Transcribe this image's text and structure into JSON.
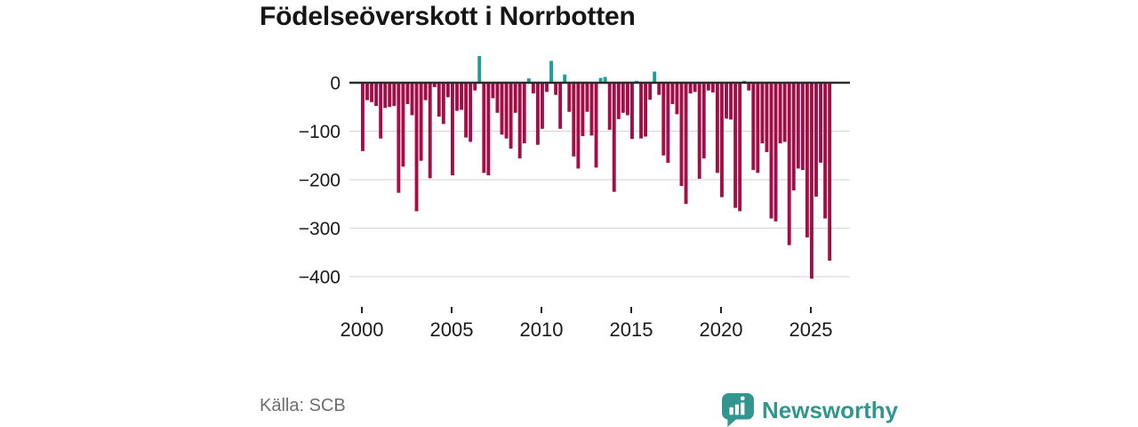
{
  "title": "Födelseöverskott i Norrbotten",
  "source": "Källa: SCB",
  "brand": {
    "name": "Newsworthy",
    "color": "#31968e",
    "icon": "bar-chart-speech-bubble-icon"
  },
  "chart_data": {
    "type": "bar",
    "title": "Födelseöverskott i Norrbotten",
    "frequency": "quarterly",
    "x_start": "2000Q1",
    "x_end": "2026Q1",
    "xticks": [
      2000,
      2005,
      2010,
      2015,
      2020,
      2025
    ],
    "yticks": [
      0,
      -100,
      -200,
      -300,
      -400
    ],
    "ylim": [
      -420,
      60
    ],
    "grid": true,
    "legend": "none",
    "colors": {
      "negative": "#a30e48",
      "positive": "#1d9e96",
      "axis": "#2b2b2b",
      "gridline": "#d9d9d9",
      "tick_text": "#1a1a1a"
    },
    "series": [
      {
        "name": "Födelseöverskott",
        "values": [
          -141,
          -36,
          -40,
          -48,
          -115,
          -52,
          -50,
          -48,
          -227,
          -173,
          -44,
          -67,
          -265,
          -161,
          -36,
          -197,
          -9,
          -70,
          -85,
          -30,
          -191,
          -58,
          -56,
          -113,
          -122,
          -16,
          55,
          -186,
          -191,
          -32,
          -62,
          -107,
          -115,
          -136,
          -62,
          -156,
          -125,
          9,
          -22,
          -128,
          -95,
          -19,
          45,
          -25,
          -95,
          17,
          -60,
          -152,
          -177,
          -110,
          -60,
          -109,
          -175,
          10,
          12,
          -97,
          -225,
          -75,
          -62,
          -67,
          -116,
          4,
          -115,
          -111,
          -35,
          23,
          -25,
          -150,
          -165,
          -44,
          -65,
          -213,
          -250,
          -22,
          -19,
          -198,
          -156,
          -16,
          -20,
          -186,
          -236,
          -74,
          -76,
          -258,
          -265,
          4,
          -16,
          -180,
          -186,
          -125,
          -143,
          -280,
          -286,
          -125,
          -122,
          -335,
          -222,
          -177,
          -180,
          -319,
          -404,
          -235,
          -165,
          -280,
          -367
        ]
      }
    ]
  }
}
